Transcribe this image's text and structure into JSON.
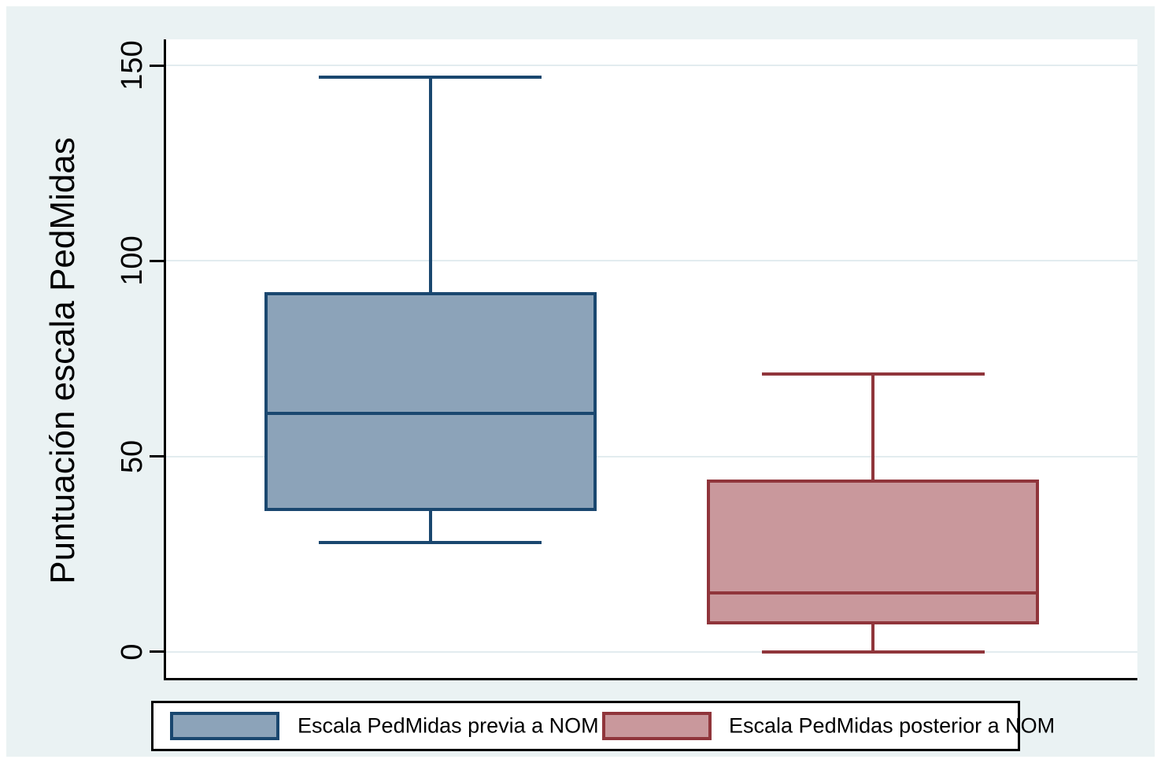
{
  "figure": {
    "background": "#eaf2f3",
    "plot_background": "#ffffff",
    "grid_color": "#e2ecef",
    "axis_color": "#000000"
  },
  "chart_data": {
    "type": "boxplot",
    "title": "",
    "xlabel": "",
    "ylabel": "Puntuación escala PedMidas",
    "yticks": [
      0,
      50,
      100,
      150
    ],
    "ylim": [
      -6.7,
      156.7
    ],
    "grid": true,
    "legend_position": "bottom",
    "series": [
      {
        "key": "previa",
        "name": "Escala PedMidas previa a NOM",
        "min": 28,
        "q1": 36,
        "median": 61,
        "q3": 92,
        "max": 147,
        "fill": "#8ca3b9",
        "stroke": "#1a476f",
        "center": 0.272
      },
      {
        "key": "posterior",
        "name": "Escala PedMidas posterior a NOM",
        "min": 0,
        "q1": 7,
        "median": 15,
        "q3": 44,
        "max": 71,
        "fill": "#c9989c",
        "stroke": "#90353b",
        "center": 0.728
      }
    ]
  },
  "legend": {
    "items": [
      {
        "label": "Escala PedMidas previa a NOM"
      },
      {
        "label": "Escala PedMidas posterior a NOM"
      }
    ]
  }
}
